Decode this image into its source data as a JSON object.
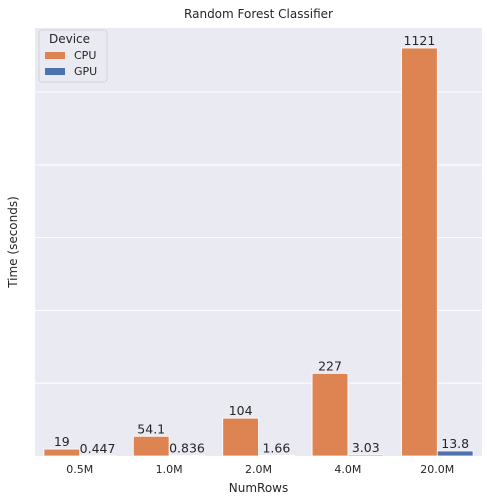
{
  "chart_data": {
    "type": "bar",
    "title": "Random Forest Classifier",
    "xlabel": "NumRows",
    "ylabel": "Time (seconds)",
    "categories": [
      "0.5M",
      "1.0M",
      "2.0M",
      "4.0M",
      "20.0M"
    ],
    "series": [
      {
        "name": "CPU",
        "color": "#dd8452",
        "values": [
          19,
          54.1,
          104,
          227,
          1121
        ],
        "labels": [
          "19",
          "54.1",
          "104",
          "227",
          "1121"
        ]
      },
      {
        "name": "GPU",
        "color": "#4c72b0",
        "values": [
          0.447,
          0.836,
          1.66,
          3.03,
          13.8
        ],
        "labels": [
          "0.447",
          "0.836",
          "1.66",
          "3.03",
          "13.8"
        ]
      }
    ],
    "ylim": [
      0,
      1176
    ],
    "grid": true,
    "y_tick_labels_visible": false,
    "legend": {
      "title": "Device",
      "placement": "top-left"
    },
    "style": {
      "background": "#eaeaf2",
      "gridline": "#ffffff"
    }
  }
}
